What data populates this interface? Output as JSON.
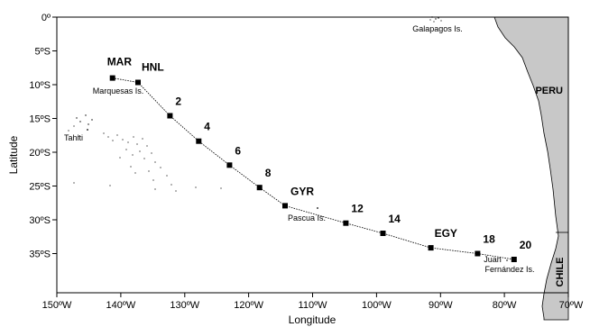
{
  "map": {
    "x_title": "Longitude",
    "y_title": "Latitude",
    "x_ticks": [
      "150ºW",
      "140ºW",
      "130ºW",
      "120ºW",
      "110ºW",
      "100ºW",
      "90ºW",
      "80ºW",
      "70ºW"
    ],
    "y_ticks": [
      "0º",
      "5ºS",
      "10ºS",
      "15ºS",
      "20ºS",
      "25ºS",
      "30ºS",
      "35ºS"
    ],
    "lon_range": [
      -150,
      -70
    ],
    "lat_range": [
      0,
      -38
    ],
    "colors": {
      "land": "#c8c8c8",
      "track": "#000000",
      "frame": "#000000"
    },
    "countries": [
      "PERU",
      "CHILE"
    ],
    "places": [
      "Galapagos Is.",
      "Marquesas Is.",
      "Tahiti",
      "Pascua Is.",
      "Juan",
      "Fernández Is."
    ],
    "stations": [
      {
        "label": "MAR",
        "lon": -141.3,
        "lat": -8.4
      },
      {
        "label": "HNL",
        "lon": -137.3,
        "lat": -9.0
      },
      {
        "label": "2",
        "lon": -132.3,
        "lat": -13.6
      },
      {
        "label": "4",
        "lon": -127.8,
        "lat": -17.1
      },
      {
        "label": "6",
        "lon": -123.0,
        "lat": -20.4
      },
      {
        "label": "8",
        "lon": -118.3,
        "lat": -23.5
      },
      {
        "label": "GYR",
        "lon": -114.3,
        "lat": -26.0
      },
      {
        "label": "12",
        "lon": -104.8,
        "lat": -28.4
      },
      {
        "label": "14",
        "lon": -99.0,
        "lat": -29.8
      },
      {
        "label": "EGY",
        "lon": -91.5,
        "lat": -31.8
      },
      {
        "label": "18",
        "lon": -84.2,
        "lat": -32.6
      },
      {
        "label": "20",
        "lon": -78.5,
        "lat": -33.4
      }
    ]
  }
}
